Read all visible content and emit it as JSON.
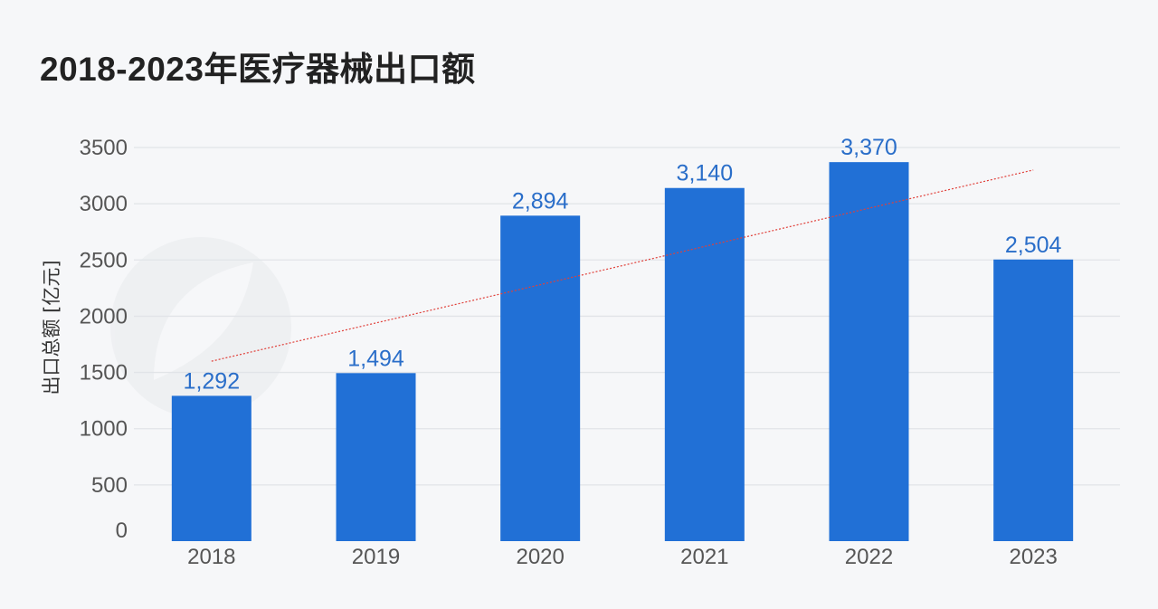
{
  "title": "2018-2023年医疗器械出口额",
  "chart_data": {
    "type": "bar",
    "title": "2018-2023年医疗器械出口额",
    "xlabel": "",
    "ylabel": "出口总额 [亿元]",
    "categories": [
      "2018",
      "2019",
      "2020",
      "2021",
      "2022",
      "2023"
    ],
    "values": [
      1292,
      1494,
      2894,
      3140,
      3370,
      2504
    ],
    "data_labels": [
      "1,292",
      "1,494",
      "2,894",
      "3,140",
      "3,370",
      "2,504"
    ],
    "ylim": [
      0,
      3500
    ],
    "yticks": [
      0,
      500,
      1000,
      1500,
      2000,
      2500,
      3000,
      3500
    ],
    "grid": true,
    "trendline": {
      "style": "dotted",
      "color": "#e0403a",
      "start_value": 1600,
      "end_value": 3300
    },
    "colors": {
      "bar": "#2170d6",
      "label": "#2a6ec9",
      "grid": "#e1e4e8",
      "background": "#f6f7f9"
    }
  }
}
